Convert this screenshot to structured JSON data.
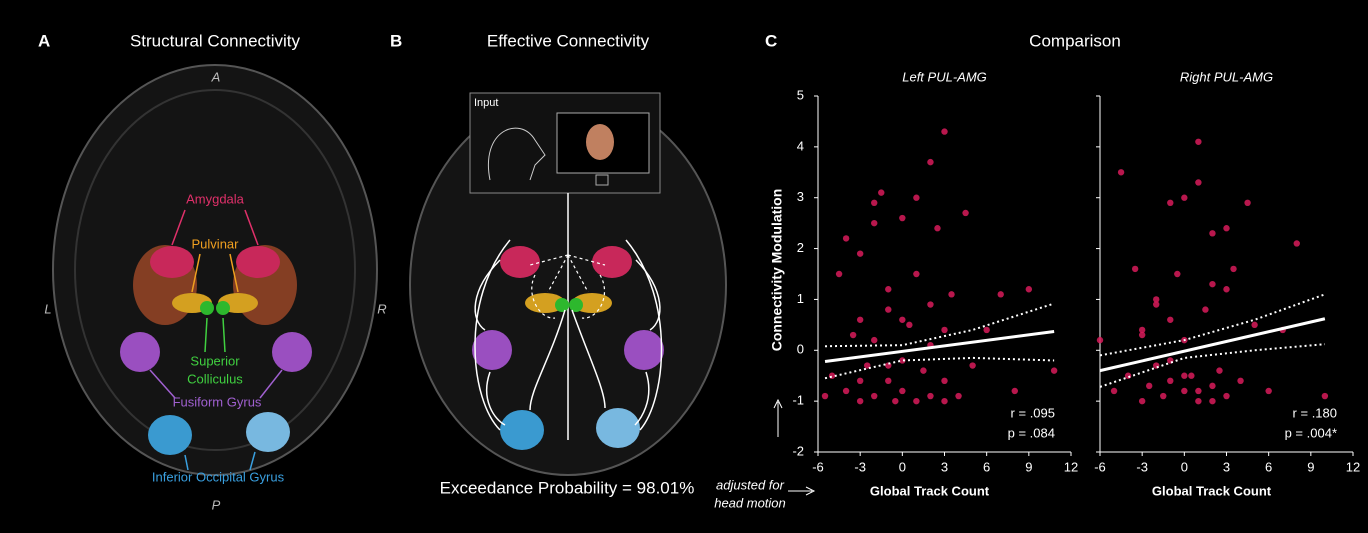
{
  "panel_a": {
    "letter": "A",
    "title": "Structural Connectivity",
    "orientation": {
      "anterior": "A",
      "posterior": "P",
      "left": "L",
      "right": "R"
    },
    "regions": {
      "amygdala": "Amygdala",
      "pulvinar": "Pulvinar",
      "colliculus": [
        "Superior",
        "Colliculus"
      ],
      "fusiform": "Fusiform Gyrus",
      "occipital": "Inferior Occipital Gyrus"
    }
  },
  "panel_b": {
    "letter": "B",
    "title": "Effective Connectivity",
    "input_label": "Input",
    "footer": "Exceedance Probability = 98.01%"
  },
  "panel_c": {
    "letter": "C",
    "title": "Comparison",
    "y_axis_title": "Connectivity Modulation",
    "x_note": [
      "adjusted for",
      "head motion"
    ]
  },
  "chart_data": [
    {
      "type": "scatter",
      "title": "Left PUL-AMG",
      "x_label": "Global Track Count",
      "color": "#d81b5a",
      "x": [
        -5.5,
        -5,
        -4.5,
        -4,
        -4,
        -3.5,
        -3,
        -3,
        -3,
        -2.5,
        -2,
        -2,
        -2,
        -1.5,
        -1,
        -1,
        -1,
        -0.5,
        0,
        0,
        0,
        0.5,
        1,
        1,
        1,
        1.5,
        2,
        2,
        2,
        2.5,
        3,
        3,
        3,
        3.5,
        4,
        4.5,
        5,
        6,
        7,
        8,
        9,
        10.8,
        -1,
        2,
        -3,
        0,
        3,
        -2
      ],
      "y": [
        -0.9,
        -0.5,
        1.5,
        2.2,
        -0.8,
        0.3,
        -1.0,
        0.6,
        1.9,
        -0.3,
        2.5,
        -0.9,
        0.2,
        3.1,
        -0.6,
        0.8,
        1.2,
        -1.0,
        2.6,
        -0.2,
        -0.8,
        0.5,
        -1.0,
        1.5,
        3.0,
        -0.4,
        3.7,
        0.9,
        -0.9,
        2.4,
        4.3,
        -0.6,
        0.4,
        1.1,
        -0.9,
        2.7,
        -0.3,
        0.4,
        1.1,
        -0.8,
        1.2,
        -0.4,
        -0.3,
        0.1,
        -0.6,
        0.6,
        -1.0,
        2.9
      ],
      "fit": {
        "x": [
          -5.5,
          10.8
        ],
        "y": [
          -0.22,
          0.37
        ]
      },
      "ci_upper": {
        "x": [
          -5.5,
          0,
          5,
          10.8
        ],
        "y": [
          0.08,
          0.1,
          0.4,
          0.92
        ]
      },
      "ci_lower": {
        "x": [
          -5.5,
          0,
          5,
          10.8
        ],
        "y": [
          -0.55,
          -0.2,
          -0.15,
          -0.2
        ]
      },
      "annotations": [
        "r = .095",
        "p = .084"
      ],
      "xlim": [
        -6,
        12
      ],
      "ylim": [
        -2,
        5
      ],
      "xticks": [
        -6,
        -3,
        0,
        3,
        6,
        9,
        12
      ],
      "yticks": [
        -2,
        -1,
        0,
        1,
        2,
        3,
        4,
        5
      ]
    },
    {
      "type": "scatter",
      "title": "Right PUL-AMG",
      "x_label": "Global Track Count",
      "color": "#d81b5a",
      "x": [
        -6,
        -5,
        -4.5,
        -4,
        -3.5,
        -3,
        -3,
        -2.5,
        -2,
        -2,
        -1.5,
        -1,
        -1,
        -1,
        -0.5,
        0,
        0,
        0,
        0.5,
        1,
        1,
        1,
        1.5,
        2,
        2,
        2,
        2.5,
        3,
        3,
        3.5,
        4,
        4.5,
        5,
        6,
        7,
        8,
        10,
        -2,
        1,
        -1,
        3,
        0,
        2,
        -3
      ],
      "y": [
        0.2,
        -0.8,
        3.5,
        -0.5,
        1.6,
        -1.0,
        0.4,
        -0.7,
        1.0,
        -0.3,
        -0.9,
        2.9,
        0.6,
        -0.6,
        1.5,
        3.0,
        -0.8,
        0.2,
        -0.5,
        4.1,
        3.3,
        -1.0,
        0.8,
        2.3,
        -0.7,
        1.3,
        -0.4,
        2.4,
        -0.9,
        1.6,
        -0.6,
        2.9,
        0.5,
        -0.8,
        0.4,
        2.1,
        -0.9,
        0.9,
        -0.8,
        -0.2,
        1.2,
        -0.5,
        -1.0,
        0.3
      ],
      "fit": {
        "x": [
          -6,
          10
        ],
        "y": [
          -0.4,
          0.62
        ]
      },
      "ci_upper": {
        "x": [
          -6,
          0,
          5,
          10
        ],
        "y": [
          -0.1,
          0.2,
          0.6,
          1.1
        ]
      },
      "ci_lower": {
        "x": [
          -6,
          0,
          5,
          10
        ],
        "y": [
          -0.72,
          -0.15,
          0.0,
          0.12
        ]
      },
      "annotations": [
        "r = .180",
        "p = .004*"
      ],
      "xlim": [
        -6,
        12
      ],
      "ylim": [
        -2,
        5
      ],
      "xticks": [
        -6,
        -3,
        0,
        3,
        6,
        9,
        12
      ],
      "yticks": [
        -2,
        -1,
        0,
        1,
        2,
        3,
        4,
        5
      ]
    }
  ]
}
